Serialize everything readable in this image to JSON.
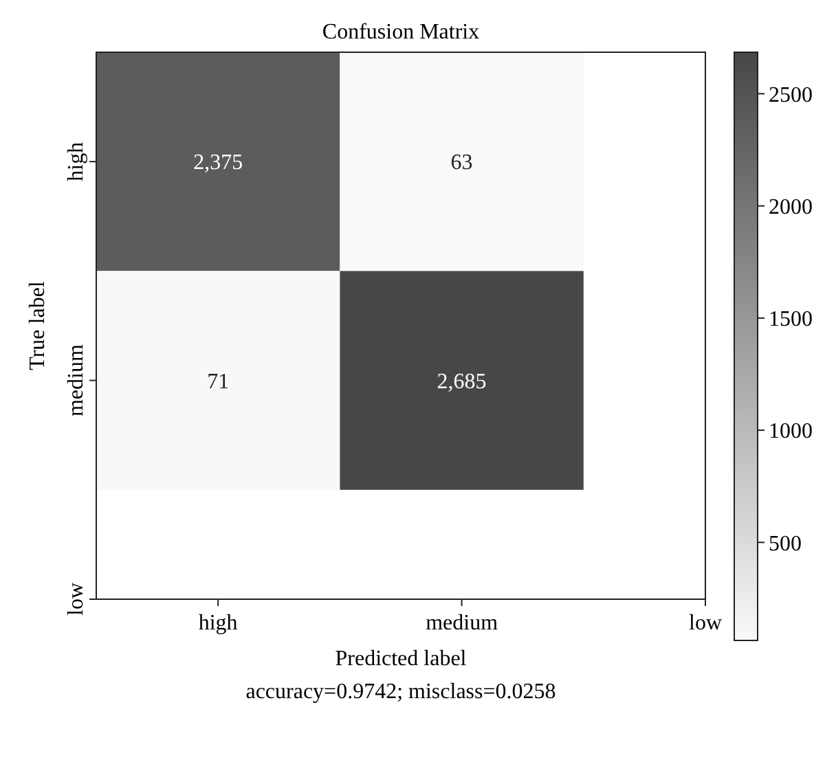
{
  "chart_data": {
    "type": "heatmap",
    "title": "Confusion Matrix",
    "xlabel": "Predicted label",
    "ylabel": "True label",
    "categories": [
      "high",
      "medium",
      "low"
    ],
    "y_categories": [
      "high",
      "medium",
      "low"
    ],
    "cells": [
      [
        2375,
        63,
        null
      ],
      [
        71,
        2685,
        null
      ],
      [
        null,
        null,
        null
      ]
    ],
    "cell_labels": [
      [
        "2,375",
        "63",
        null
      ],
      [
        "71",
        "2,685",
        null
      ],
      [
        null,
        null,
        null
      ]
    ],
    "clim": [
      63,
      2685
    ],
    "cticks": [
      500,
      1000,
      1500,
      2000,
      2500
    ],
    "annotations": [
      "accuracy=0.9742; misclass=0.0258"
    ]
  }
}
